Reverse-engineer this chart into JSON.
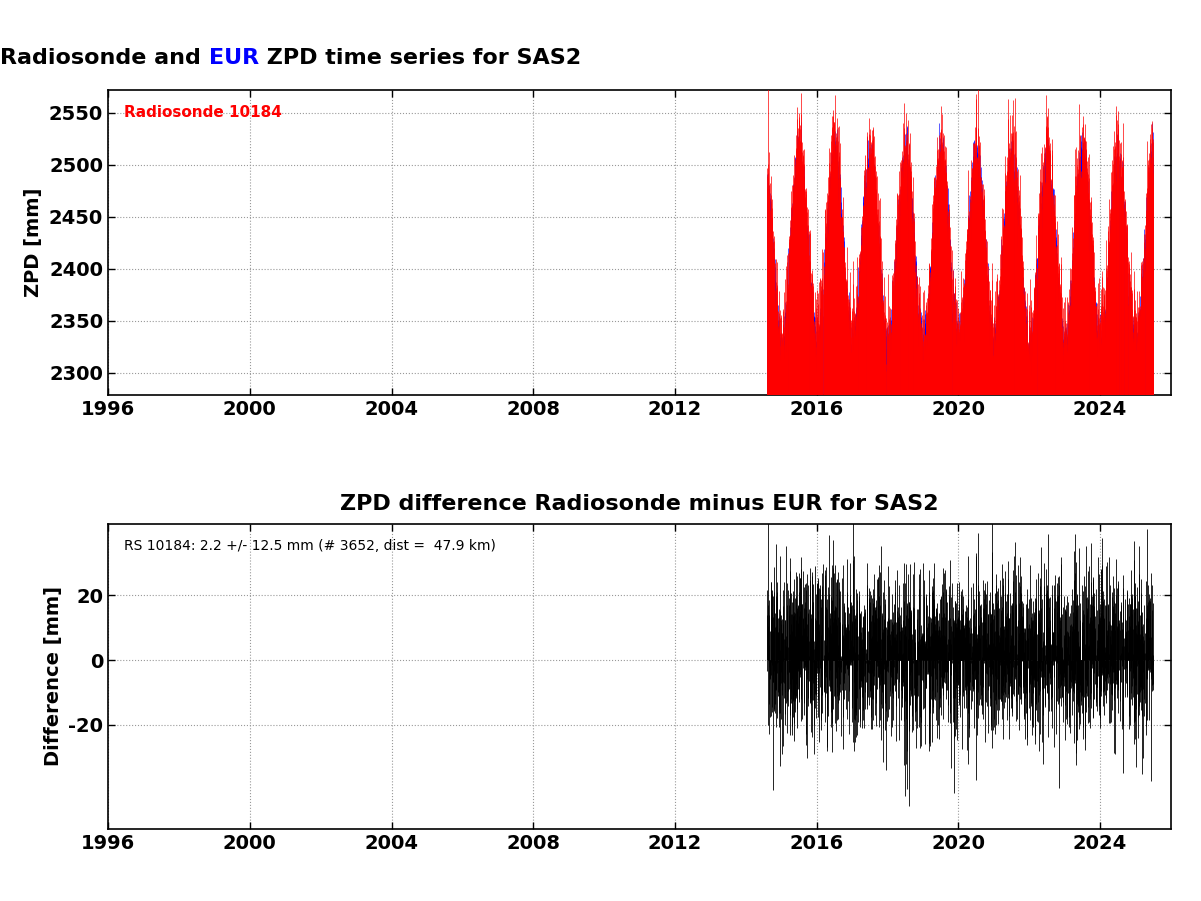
{
  "title_part1": "Radiosonde and ",
  "title_part2": "EUR",
  "title_part3": " ZPD time series for SAS2",
  "title2": "ZPD difference Radiosonde minus EUR for SAS2",
  "ylabel1": "ZPD [mm]",
  "ylabel2": "Difference [mm]",
  "annotation1": "Radiosonde 10184",
  "annotation2": "RS 10184: 2.2 +/- 12.5 mm (# 3652, dist =  47.9 km)",
  "xmin": 1996,
  "xmax": 2026,
  "xticks": [
    1996,
    2000,
    2004,
    2008,
    2012,
    2016,
    2020,
    2024
  ],
  "ylim1_min": 2278,
  "ylim1_max": 2572,
  "yticks1": [
    2300,
    2350,
    2400,
    2450,
    2500,
    2550
  ],
  "ylim2_min": -52,
  "ylim2_max": 42,
  "yticks2": [
    -20,
    0,
    20
  ],
  "data_start_year": 2014.6,
  "t_end": 2025.5,
  "red_color": "#ff0000",
  "blue_color": "#0000ff",
  "black_color": "#000000",
  "background_color": "#ffffff",
  "grid_color": "#999999",
  "seed": 42,
  "n_points": 3652,
  "zpd_mean": 2415,
  "zpd_amplitude": 90,
  "zpd_noise": 25,
  "diff_mean": 2.2,
  "diff_std": 12.5,
  "title_fontsize": 16,
  "tick_fontsize": 14,
  "label_fontsize": 14,
  "annot_fontsize": 11,
  "annot2_fontsize": 10
}
